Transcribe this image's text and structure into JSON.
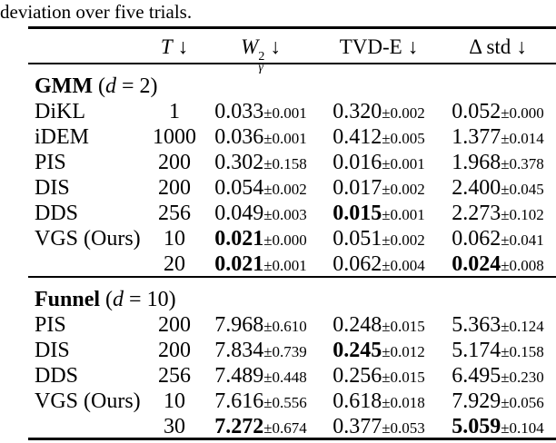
{
  "caption": "deviation over five trials.",
  "table": {
    "plus_minus": "±",
    "headers": {
      "t": {
        "var": "T",
        "arrow": "↓"
      },
      "w2": {
        "var": "W",
        "sup": "2",
        "sub": "γ",
        "arrow": "↓"
      },
      "tvd": {
        "label": "TVD-E",
        "arrow": "↓"
      },
      "dstd": {
        "label": "Δ std",
        "arrow": "↓"
      }
    },
    "sections": [
      {
        "name": "GMM",
        "dim_var": "d",
        "dim_value": "2",
        "rows": [
          {
            "label": "DiKL",
            "t": "1",
            "w2": {
              "mean": "0.033",
              "std": "0.001",
              "bold": false
            },
            "tvd": {
              "mean": "0.320",
              "std": "0.002",
              "bold": false
            },
            "dstd": {
              "mean": "0.052",
              "std": "0.000",
              "bold": false
            }
          },
          {
            "label": "iDEM",
            "t": "1000",
            "w2": {
              "mean": "0.036",
              "std": "0.001",
              "bold": false
            },
            "tvd": {
              "mean": "0.412",
              "std": "0.005",
              "bold": false
            },
            "dstd": {
              "mean": "1.377",
              "std": "0.014",
              "bold": false
            }
          },
          {
            "label": "PIS",
            "t": "200",
            "w2": {
              "mean": "0.302",
              "std": "0.158",
              "bold": false
            },
            "tvd": {
              "mean": "0.016",
              "std": "0.001",
              "bold": false
            },
            "dstd": {
              "mean": "1.968",
              "std": "0.378",
              "bold": false
            }
          },
          {
            "label": "DIS",
            "t": "200",
            "w2": {
              "mean": "0.054",
              "std": "0.002",
              "bold": false
            },
            "tvd": {
              "mean": "0.017",
              "std": "0.002",
              "bold": false
            },
            "dstd": {
              "mean": "2.400",
              "std": "0.045",
              "bold": false
            }
          },
          {
            "label": "DDS",
            "t": "256",
            "w2": {
              "mean": "0.049",
              "std": "0.003",
              "bold": false
            },
            "tvd": {
              "mean": "0.015",
              "std": "0.001",
              "bold": true
            },
            "dstd": {
              "mean": "2.273",
              "std": "0.102",
              "bold": false
            }
          },
          {
            "label": "VGS (Ours)",
            "t": "10",
            "w2": {
              "mean": "0.021",
              "std": "0.000",
              "bold": true
            },
            "tvd": {
              "mean": "0.051",
              "std": "0.002",
              "bold": false
            },
            "dstd": {
              "mean": "0.062",
              "std": "0.041",
              "bold": false
            }
          },
          {
            "label": "",
            "t": "20",
            "w2": {
              "mean": "0.021",
              "std": "0.001",
              "bold": true
            },
            "tvd": {
              "mean": "0.062",
              "std": "0.004",
              "bold": false
            },
            "dstd": {
              "mean": "0.024",
              "std": "0.008",
              "bold": true
            }
          }
        ]
      },
      {
        "name": "Funnel",
        "dim_var": "d",
        "dim_value": "10",
        "rows": [
          {
            "label": "PIS",
            "t": "200",
            "w2": {
              "mean": "7.968",
              "std": "0.610",
              "bold": false
            },
            "tvd": {
              "mean": "0.248",
              "std": "0.015",
              "bold": false
            },
            "dstd": {
              "mean": "5.363",
              "std": "0.124",
              "bold": false
            }
          },
          {
            "label": "DIS",
            "t": "200",
            "w2": {
              "mean": "7.834",
              "std": "0.739",
              "bold": false
            },
            "tvd": {
              "mean": "0.245",
              "std": "0.012",
              "bold": true
            },
            "dstd": {
              "mean": "5.174",
              "std": "0.158",
              "bold": false
            }
          },
          {
            "label": "DDS",
            "t": "256",
            "w2": {
              "mean": "7.489",
              "std": "0.448",
              "bold": false
            },
            "tvd": {
              "mean": "0.256",
              "std": "0.015",
              "bold": false
            },
            "dstd": {
              "mean": "6.495",
              "std": "0.230",
              "bold": false
            }
          },
          {
            "label": "VGS (Ours)",
            "t": "10",
            "w2": {
              "mean": "7.616",
              "std": "0.556",
              "bold": false
            },
            "tvd": {
              "mean": "0.618",
              "std": "0.018",
              "bold": false
            },
            "dstd": {
              "mean": "7.929",
              "std": "0.056",
              "bold": false
            }
          },
          {
            "label": "",
            "t": "30",
            "w2": {
              "mean": "7.272",
              "std": "0.674",
              "bold": true
            },
            "tvd": {
              "mean": "0.377",
              "std": "0.053",
              "bold": false
            },
            "dstd": {
              "mean": "5.059",
              "std": "0.104",
              "bold": true
            }
          }
        ]
      }
    ]
  }
}
